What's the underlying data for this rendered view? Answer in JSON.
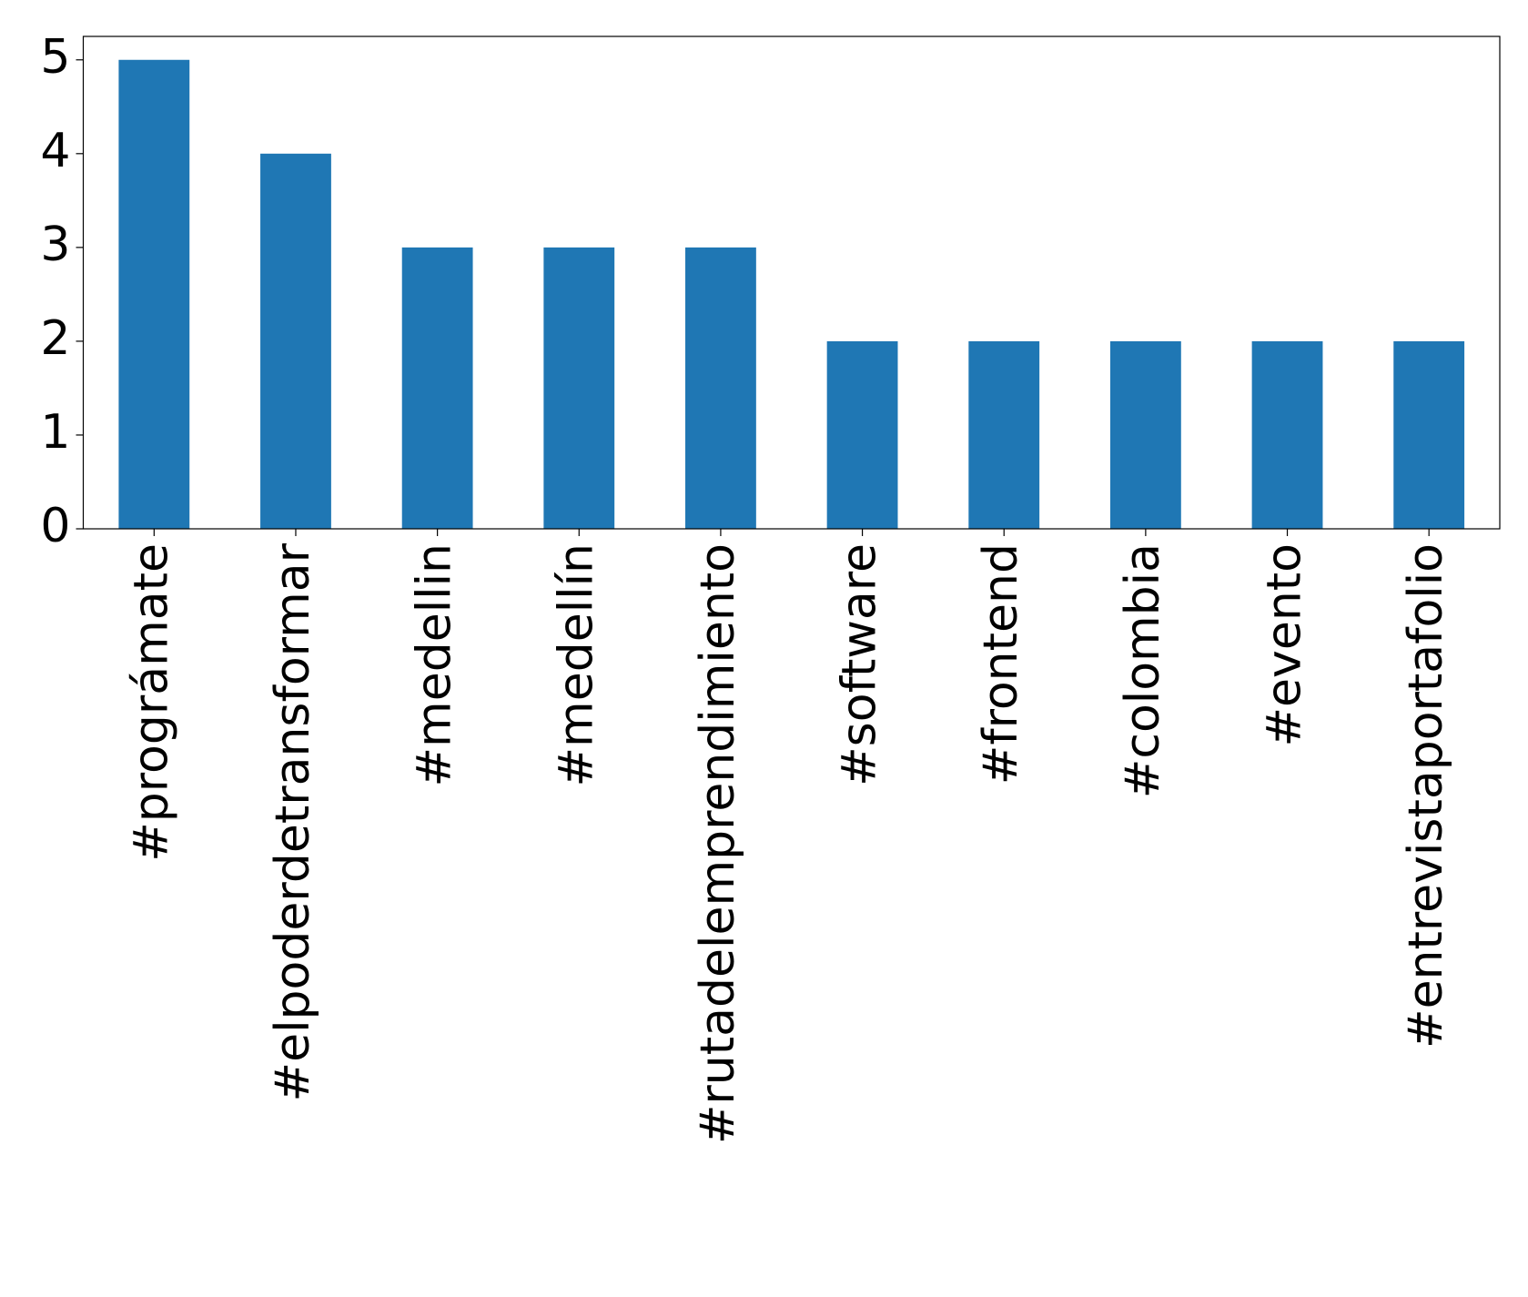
{
  "chart_data": {
    "type": "bar",
    "categories": [
      "#prográmate",
      "#elpoderdetransformar",
      "#medellin",
      "#medellín",
      "#rutadelemprendimiento",
      "#software",
      "#frontend",
      "#colombia",
      "#evento",
      "#entrevistaportafolio"
    ],
    "values": [
      5,
      4,
      3,
      3,
      3,
      2,
      2,
      2,
      2,
      2
    ],
    "color": "#1f77b4",
    "ylim": [
      0,
      5.25
    ],
    "yticks": [
      0,
      1,
      2,
      3,
      4,
      5
    ],
    "grid": false
  }
}
